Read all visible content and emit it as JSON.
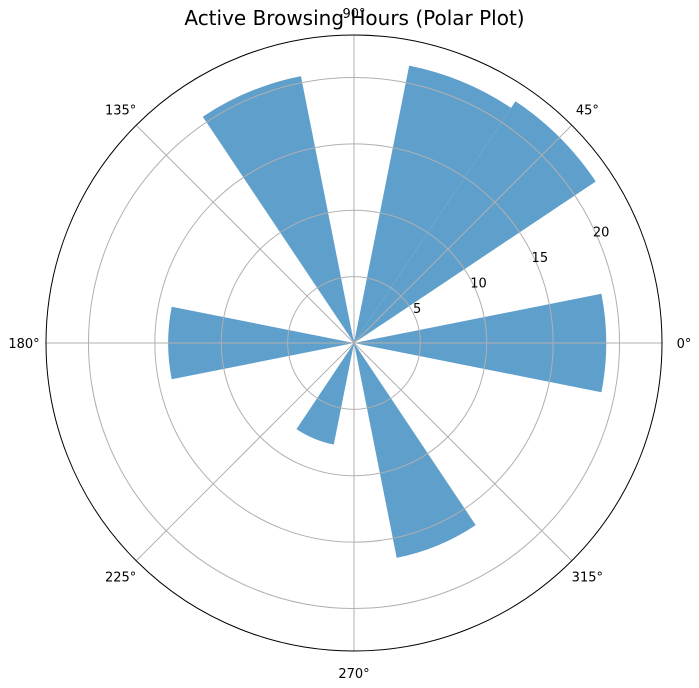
{
  "chart_data": {
    "type": "bar",
    "projection": "polar",
    "title": "Active Browsing Hours (Polar Plot)",
    "angle_ticks": [
      "0°",
      "45°",
      "90°",
      "135°",
      "180°",
      "225°",
      "270°",
      "315°"
    ],
    "angle_tick_degrees": [
      0,
      45,
      90,
      135,
      180,
      225,
      270,
      315
    ],
    "radial_ticks": [
      "5",
      "10",
      "15",
      "20"
    ],
    "radial_tick_values": [
      5,
      10,
      15,
      20
    ],
    "radial_range": [
      0,
      23.2
    ],
    "radial_label_angle_deg": 22.5,
    "bar_width_deg": 22.5,
    "bar_angles_deg": [
      0,
      45,
      67.5,
      112.5,
      180,
      247.5,
      292.5
    ],
    "bar_values": [
      19,
      21.9,
      21.3,
      20.5,
      14,
      7.8,
      16.5
    ],
    "bar_color": "#5f9fcb",
    "grid": true
  }
}
